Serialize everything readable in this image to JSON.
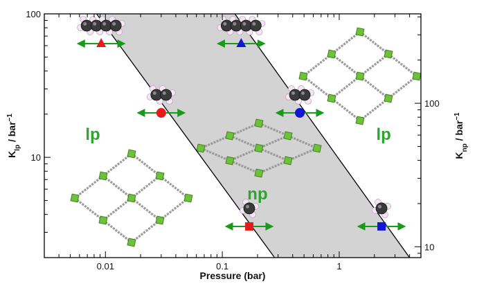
{
  "chart_data": {
    "type": "line",
    "xlabel": "Pressure (bar)",
    "ylabel_left": {
      "base": "K",
      "sub": "lp",
      "unit": " / bar",
      "sup": "−1"
    },
    "ylabel_right": {
      "base": "K",
      "sub": "np",
      "unit": " / bar",
      "sup": "−1"
    },
    "xscale": "log",
    "yscale_left": "log",
    "yscale_right": "log",
    "xlim": [
      0.003,
      5
    ],
    "ylim_left": [
      2,
      100
    ],
    "ylim_right": [
      8.4,
      420
    ],
    "x_ticks": [
      {
        "value": 0.01,
        "label": "0.01"
      },
      {
        "value": 0.1,
        "label": "0.1"
      },
      {
        "value": 1,
        "label": "1"
      }
    ],
    "y_ticks_left": [
      {
        "value": 10,
        "label": "10"
      },
      {
        "value": 100,
        "label": "100"
      }
    ],
    "y_ticks_right": [
      {
        "value": 10,
        "label": "10"
      },
      {
        "value": 100,
        "label": "100"
      }
    ],
    "series": [
      {
        "points": [
          [
            0.0084,
            100
          ],
          [
            0.28,
            2
          ]
        ]
      },
      {
        "points": [
          [
            0.128,
            420
          ],
          [
            4.0,
            8.4
          ]
        ]
      }
    ],
    "shaded_region": {
      "color": "#d3d3d3",
      "between_series": [
        0,
        1
      ]
    },
    "markers": [
      {
        "shape": "triangle",
        "color": "#e41a1c",
        "x": 0.0092,
        "y": 62,
        "axis": "left",
        "molecule": "large"
      },
      {
        "shape": "circle",
        "color": "#e41a1c",
        "x": 0.03,
        "y": 20.4,
        "axis": "left",
        "molecule": "medium"
      },
      {
        "shape": "square",
        "color": "#e41a1c",
        "x": 0.17,
        "y": 3.3,
        "axis": "left",
        "molecule": "small"
      },
      {
        "shape": "triangle",
        "color": "#1515d6",
        "x": 0.145,
        "y": 62,
        "axis": "left",
        "molecule": "large"
      },
      {
        "shape": "circle",
        "color": "#1515d6",
        "x": 0.46,
        "y": 20.4,
        "axis": "left",
        "molecule": "medium"
      },
      {
        "shape": "square",
        "color": "#1515d6",
        "x": 2.3,
        "y": 3.3,
        "axis": "left",
        "molecule": "small"
      }
    ],
    "double_arrow_color": "#1a9a1a",
    "region_labels": [
      {
        "text": "lp",
        "x": 0.0078,
        "y": 13.2
      },
      {
        "text": "np",
        "x": 0.2,
        "y": 5.1
      },
      {
        "text": "lp",
        "x": 2.4,
        "y": 13.2
      }
    ],
    "framework_colors": {
      "node": "#6ec23a",
      "node_dark": "#3f7f1f",
      "linker": "#9a9a9a"
    }
  }
}
